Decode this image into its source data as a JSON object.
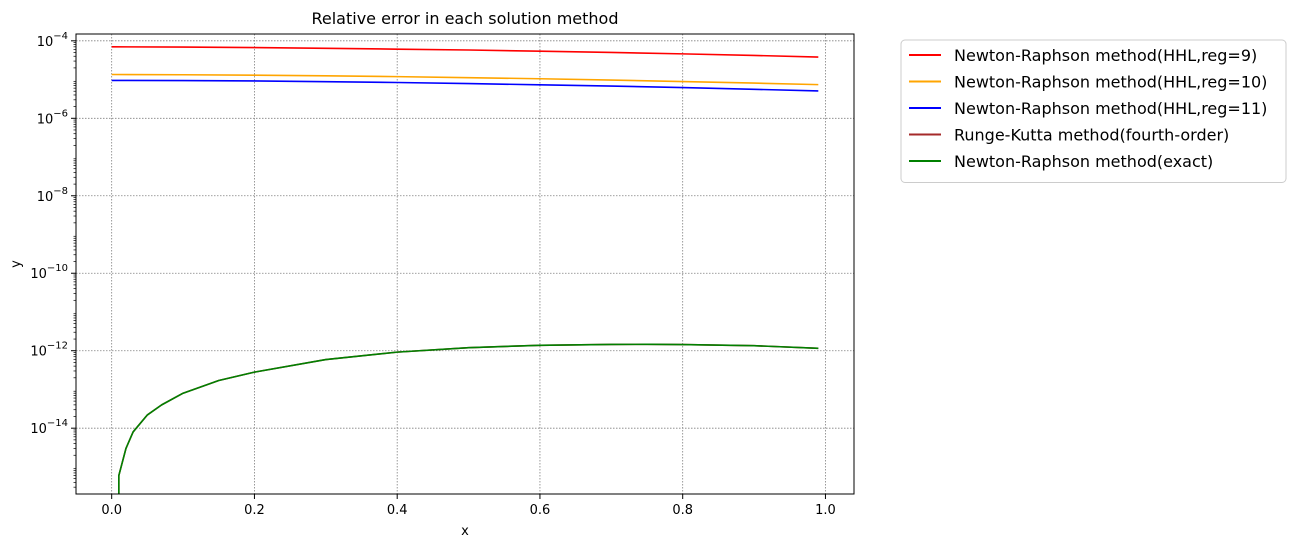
{
  "chart_data": {
    "type": "line",
    "title": "Relative error in each solution method",
    "xlabel": "x",
    "ylabel": "y",
    "xscale": "linear",
    "yscale": "log",
    "xlim": [
      -0.05,
      1.04
    ],
    "ylim_exponent": [
      -15.7,
      0
    ],
    "ylim_exponent_note_hidden": true,
    "ylim": [
      2e-16,
      0.00015
    ],
    "xticks": [
      0.0,
      0.2,
      0.4,
      0.6,
      0.8,
      1.0
    ],
    "xtick_labels": [
      "0.0",
      "0.2",
      "0.4",
      "0.6",
      "0.8",
      "1.0"
    ],
    "yticks_exponent": [
      -14,
      -12,
      -10,
      -8,
      -6,
      -4
    ],
    "grid": true,
    "legend_placement": "outside upper right",
    "series": [
      {
        "name": "Newton-Raphson method(HHL,reg=9)",
        "color": "#ff0000",
        "x": [
          0.0,
          0.1,
          0.2,
          0.3,
          0.4,
          0.5,
          0.6,
          0.7,
          0.8,
          0.9,
          0.99
        ],
        "y": [
          7e-05,
          6.9e-05,
          6.7e-05,
          6.4e-05,
          6.1e-05,
          5.8e-05,
          5.4e-05,
          5e-05,
          4.6e-05,
          4.2e-05,
          3.8e-05
        ]
      },
      {
        "name": "Newton-Raphson method(HHL,reg=10)",
        "color": "#ffa500",
        "x": [
          0.0,
          0.1,
          0.2,
          0.3,
          0.4,
          0.5,
          0.6,
          0.7,
          0.8,
          0.9,
          0.99
        ],
        "y": [
          1.35e-05,
          1.33e-05,
          1.3e-05,
          1.25e-05,
          1.19e-05,
          1.12e-05,
          1.05e-05,
          9.7e-06,
          8.9e-06,
          8.1e-06,
          7.4e-06
        ]
      },
      {
        "name": "Newton-Raphson method(HHL,reg=11)",
        "color": "#0000ff",
        "x": [
          0.0,
          0.1,
          0.2,
          0.3,
          0.4,
          0.5,
          0.6,
          0.7,
          0.8,
          0.9,
          0.99
        ],
        "y": [
          9.5e-06,
          9.4e-06,
          9.2e-06,
          8.8e-06,
          8.4e-06,
          7.9e-06,
          7.3e-06,
          6.8e-06,
          6.2e-06,
          5.6e-06,
          5.1e-06
        ]
      },
      {
        "name": "Runge-Kutta method(fourth-order)",
        "color": "#a52a2a",
        "x": [
          0.01,
          0.02,
          0.03,
          0.05,
          0.07,
          0.1,
          0.15,
          0.2,
          0.3,
          0.4,
          0.5,
          0.6,
          0.7,
          0.75,
          0.8,
          0.9,
          0.99
        ],
        "y": [
          6e-16,
          3e-15,
          8e-15,
          2.2e-14,
          4e-14,
          8e-14,
          1.7e-13,
          2.8e-13,
          5.9e-13,
          9.2e-13,
          1.2e-12,
          1.38e-12,
          1.45e-12,
          1.46e-12,
          1.44e-12,
          1.35e-12,
          1.15e-12
        ]
      },
      {
        "name": "Newton-Raphson method(exact)",
        "color": "#008000",
        "x": [
          0.01,
          0.02,
          0.03,
          0.05,
          0.07,
          0.1,
          0.15,
          0.2,
          0.3,
          0.4,
          0.5,
          0.6,
          0.7,
          0.75,
          0.8,
          0.9,
          0.99
        ],
        "y": [
          6e-16,
          3e-15,
          8e-15,
          2.2e-14,
          4e-14,
          8e-14,
          1.7e-13,
          2.8e-13,
          5.9e-13,
          9.2e-13,
          1.2e-12,
          1.38e-12,
          1.45e-12,
          1.46e-12,
          1.44e-12,
          1.35e-12,
          1.15e-12
        ]
      }
    ]
  }
}
